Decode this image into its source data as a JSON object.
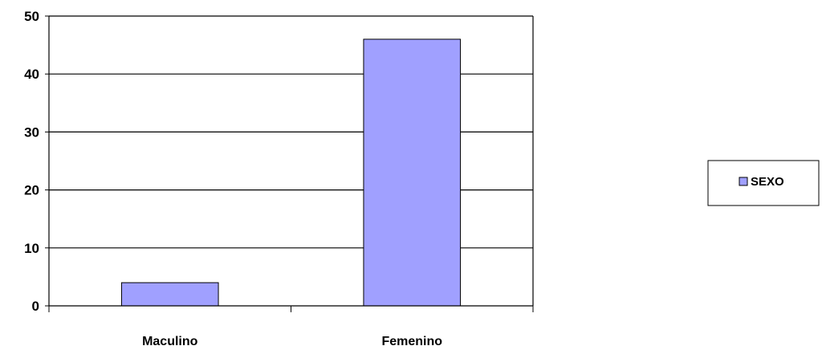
{
  "chart_data": {
    "type": "bar",
    "categories": [
      "Maculino",
      "Femenino"
    ],
    "series": [
      {
        "name": "SEXO",
        "values": [
          4,
          46
        ],
        "color": "#a0a0ff"
      }
    ],
    "ylim": [
      0,
      50
    ],
    "yticks": [
      "0",
      "10",
      "20",
      "30",
      "40",
      "50"
    ],
    "grid": true,
    "legend": "right",
    "title": "",
    "xlabel": "",
    "ylabel": ""
  }
}
